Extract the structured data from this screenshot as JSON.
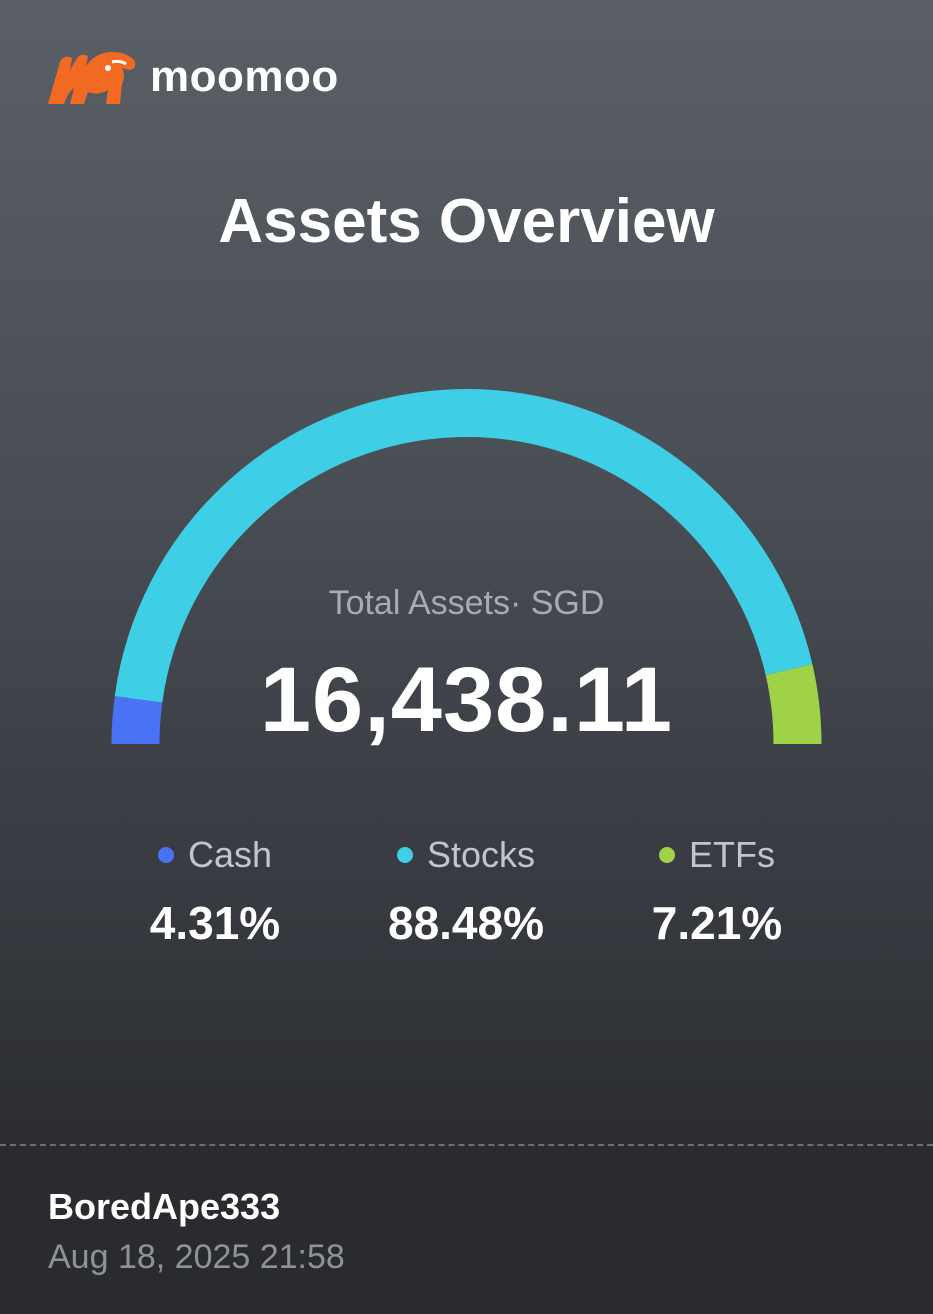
{
  "brand": {
    "name": "moomoo",
    "logo_icon": "moomoo-bull-logo-icon",
    "logo_color": "#f26a21"
  },
  "title": "Assets Overview",
  "total": {
    "label": "Total Assets· SGD",
    "value": "16,438.11"
  },
  "allocation": [
    {
      "name": "Cash",
      "percent_label": "4.31%",
      "percent": 4.31,
      "color": "#4a72f5"
    },
    {
      "name": "Stocks",
      "percent_label": "88.48%",
      "percent": 88.48,
      "color": "#3ecfe6"
    },
    {
      "name": "ETFs",
      "percent_label": "7.21%",
      "percent": 7.21,
      "color": "#9fd246"
    }
  ],
  "footer": {
    "username": "BoredApe333",
    "timestamp": "Aug 18, 2025 21:58"
  }
}
